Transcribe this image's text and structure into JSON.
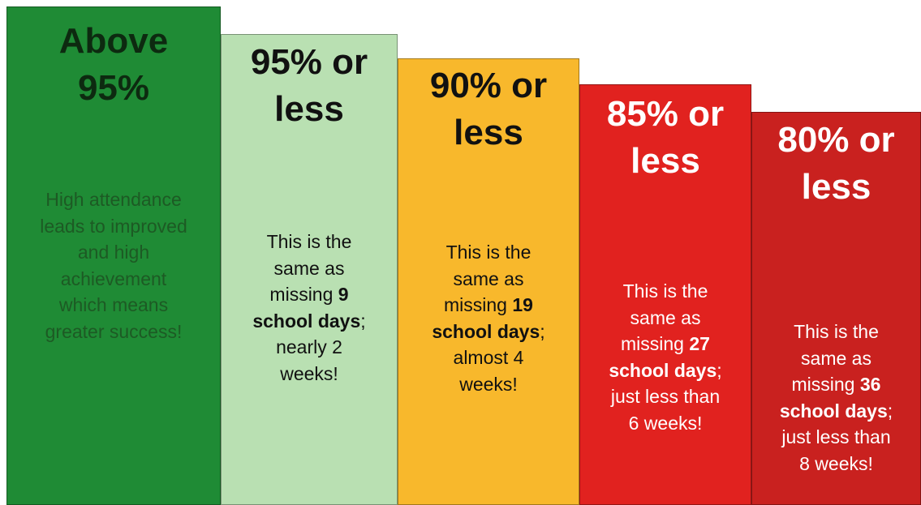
{
  "columns": [
    {
      "color": "#1f8b35",
      "heading_color": "#0d2a10",
      "text_color": "#1d5a24",
      "heading": [
        "Above",
        "95%"
      ],
      "body": [
        [
          {
            "text": "High attendance",
            "bold": false
          }
        ],
        [
          {
            "text": "leads to improved",
            "bold": false
          }
        ],
        [
          {
            "text": "and high",
            "bold": false
          }
        ],
        [
          {
            "text": "achievement",
            "bold": false
          }
        ],
        [
          {
            "text": "which means",
            "bold": false
          }
        ],
        [
          {
            "text": "greater success!",
            "bold": false
          }
        ]
      ]
    },
    {
      "color": "#b9e0b2",
      "heading_color": "#111111",
      "text_color": "#111111",
      "heading": [
        "95% or",
        "less"
      ],
      "body": [
        [
          {
            "text": "This is the",
            "bold": false
          }
        ],
        [
          {
            "text": "same as",
            "bold": false
          }
        ],
        [
          {
            "text": "missing ",
            "bold": false
          },
          {
            "text": "9",
            "bold": true
          }
        ],
        [
          {
            "text": "school days",
            "bold": true
          },
          {
            "text": ";",
            "bold": false
          }
        ],
        [
          {
            "text": "nearly 2",
            "bold": false
          }
        ],
        [
          {
            "text": "weeks!",
            "bold": false
          }
        ]
      ]
    },
    {
      "color": "#f8b82c",
      "heading_color": "#111111",
      "text_color": "#111111",
      "heading": [
        "90% or",
        "less"
      ],
      "body": [
        [
          {
            "text": "This is the",
            "bold": false
          }
        ],
        [
          {
            "text": "same as",
            "bold": false
          }
        ],
        [
          {
            "text": "missing ",
            "bold": false
          },
          {
            "text": "19",
            "bold": true
          }
        ],
        [
          {
            "text": "school days",
            "bold": true
          },
          {
            "text": ";",
            "bold": false
          }
        ],
        [
          {
            "text": "almost 4",
            "bold": false
          }
        ],
        [
          {
            "text": "weeks!",
            "bold": false
          }
        ]
      ]
    },
    {
      "color": "#e1221f",
      "heading_color": "#ffffff",
      "text_color": "#ffffff",
      "heading": [
        "85% or",
        "less"
      ],
      "body": [
        [
          {
            "text": "This is the",
            "bold": false
          }
        ],
        [
          {
            "text": "same as",
            "bold": false
          }
        ],
        [
          {
            "text": "missing ",
            "bold": false
          },
          {
            "text": "27",
            "bold": true
          }
        ],
        [
          {
            "text": "school days",
            "bold": true
          },
          {
            "text": ";",
            "bold": false
          }
        ],
        [
          {
            "text": "just less than",
            "bold": false
          }
        ],
        [
          {
            "text": "6 weeks!",
            "bold": false
          }
        ]
      ]
    },
    {
      "color": "#c9211f",
      "heading_color": "#ffffff",
      "text_color": "#ffffff",
      "heading": [
        "80% or",
        "less"
      ],
      "body": [
        [
          {
            "text": "This is the",
            "bold": false
          }
        ],
        [
          {
            "text": "same as",
            "bold": false
          }
        ],
        [
          {
            "text": "missing ",
            "bold": false
          },
          {
            "text": "36",
            "bold": true
          }
        ],
        [
          {
            "text": "school days",
            "bold": true
          },
          {
            "text": ";",
            "bold": false
          }
        ],
        [
          {
            "text": "just less than",
            "bold": false
          }
        ],
        [
          {
            "text": "8 weeks!",
            "bold": false
          }
        ]
      ]
    }
  ]
}
